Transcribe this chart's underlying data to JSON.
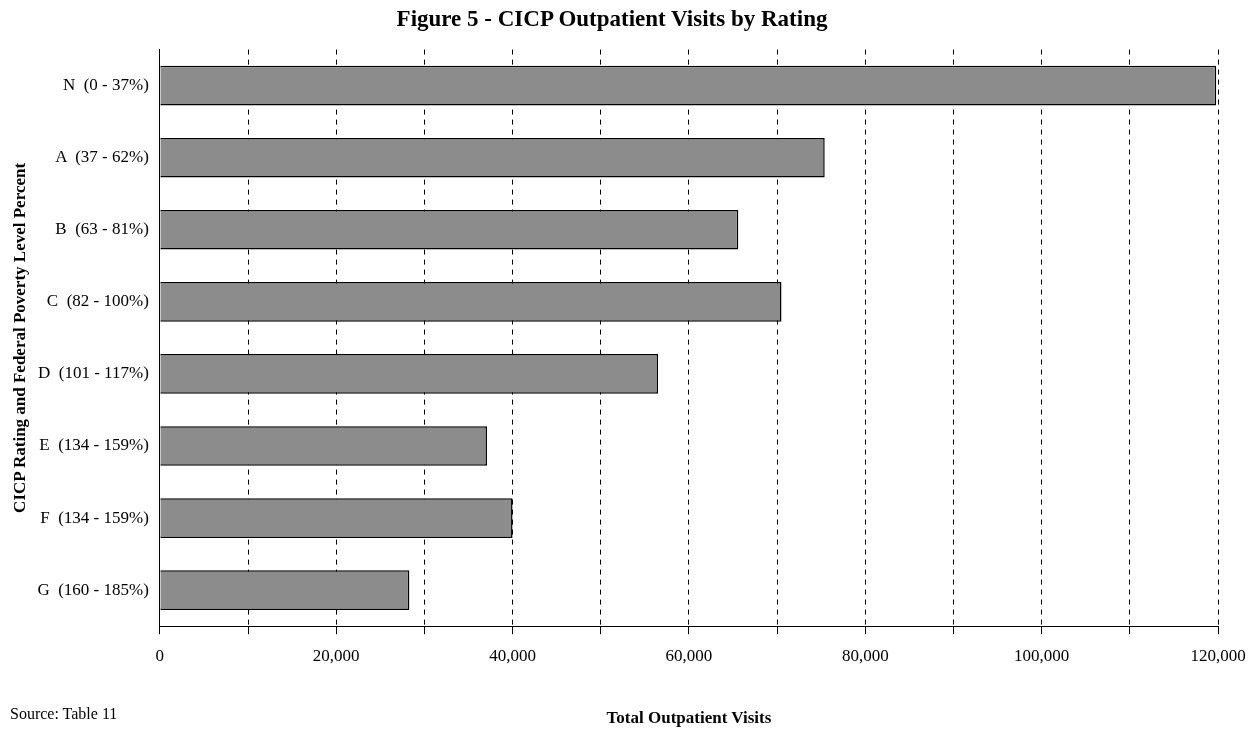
{
  "chart_data": {
    "type": "bar",
    "orientation": "horizontal",
    "title": "Figure 5 - CICP Outpatient Visits by Rating",
    "xlabel": "Total Outpatient Visits",
    "ylabel": "CICP Rating and Federal Poverty Level Percent",
    "categories": [
      "N  (0 - 37%)",
      "A  (37 - 62%)",
      "B  (63 - 81%)",
      "C  (82 - 100%)",
      "D  (101 - 117%)",
      "E  (134 - 159%)",
      "F  (134 - 159%)",
      "G  (160 - 185%)"
    ],
    "values": [
      119800,
      75400,
      65600,
      70500,
      56500,
      37100,
      40000,
      28300
    ],
    "color": "#8c8c8c",
    "xlim": [
      0,
      120000
    ],
    "xticks": [
      0,
      {
        "value": 10000,
        "label": null
      },
      {
        "value": 20000,
        "label": "20,000"
      },
      {
        "value": 30000,
        "label": null
      },
      {
        "value": 40000,
        "label": "40,000"
      },
      {
        "value": 50000,
        "label": null
      },
      {
        "value": 60000,
        "label": "60,000"
      },
      {
        "value": 70000,
        "label": null
      },
      {
        "value": 80000,
        "label": "80,000"
      },
      {
        "value": 90000,
        "label": null
      },
      {
        "value": 100000,
        "label": "100,000"
      },
      {
        "value": 110000,
        "label": null
      },
      {
        "value": 120000,
        "label": "120,000"
      }
    ],
    "grid": "x",
    "annotations": [
      "Source:  Table 11"
    ]
  }
}
